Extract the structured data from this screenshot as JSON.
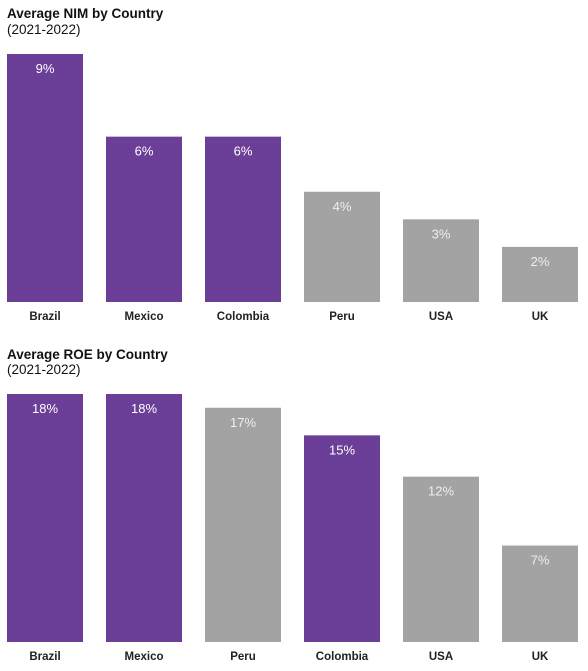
{
  "colors": {
    "highlight": "#6b3f97",
    "muted": "#a3a3a3"
  },
  "chart_data": [
    {
      "type": "bar",
      "title": "Average NIM by Country",
      "subtitle": "(2021-2022)",
      "categories": [
        "Brazil",
        "Mexico",
        "Colombia",
        "Peru",
        "USA",
        "UK"
      ],
      "values": [
        9,
        6,
        6,
        4,
        3,
        2
      ],
      "labels": [
        "9%",
        "6%",
        "6%",
        "4%",
        "3%",
        "2%"
      ],
      "highlight": [
        true,
        true,
        true,
        false,
        false,
        false
      ],
      "ylim": [
        0,
        9
      ],
      "grid": false,
      "legend": "none"
    },
    {
      "type": "bar",
      "title": "Average ROE by Country",
      "subtitle": "(2021-2022)",
      "categories": [
        "Brazil",
        "Mexico",
        "Peru",
        "Colombia",
        "USA",
        "UK"
      ],
      "values": [
        18,
        18,
        17,
        15,
        12,
        7
      ],
      "labels": [
        "18%",
        "18%",
        "17%",
        "15%",
        "12%",
        "7%"
      ],
      "highlight": [
        true,
        true,
        false,
        true,
        false,
        false
      ],
      "ylim": [
        0,
        18
      ],
      "grid": false,
      "legend": "none"
    }
  ]
}
